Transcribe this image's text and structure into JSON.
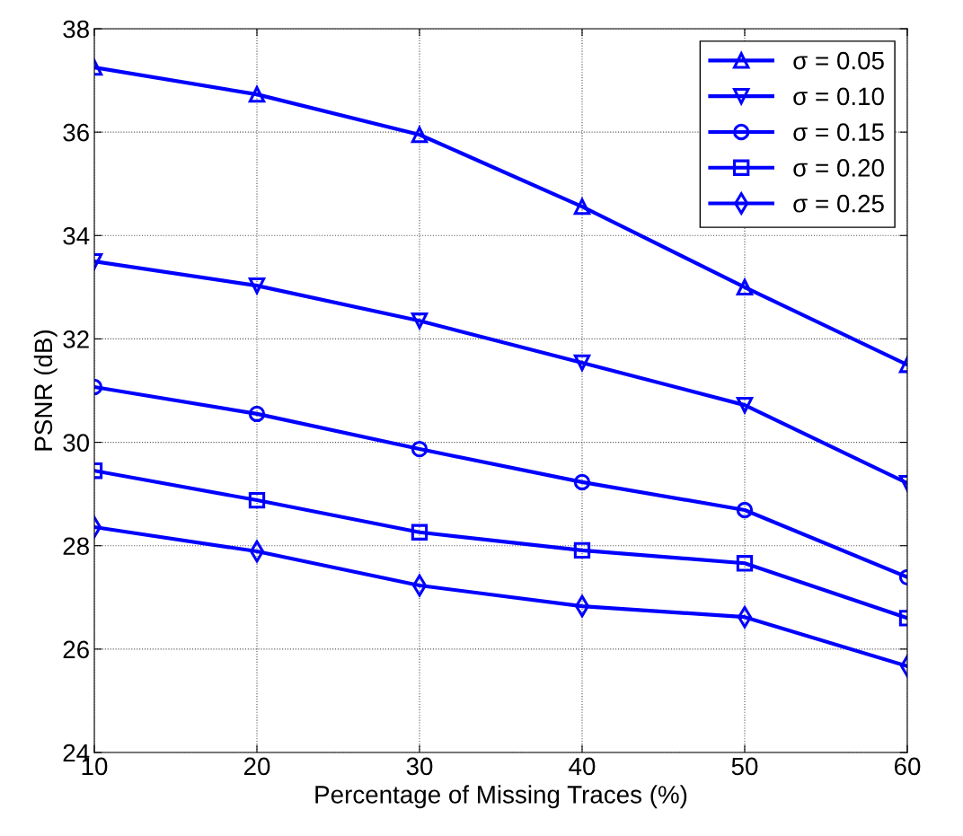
{
  "chart_data": {
    "type": "line",
    "xlabel": "Percentage of Missing Traces (%)",
    "ylabel": "PSNR (dB)",
    "x": [
      10,
      20,
      30,
      40,
      50,
      60
    ],
    "series": [
      {
        "name": "σ = 0.05",
        "color": "#0000ff",
        "marker": "triangle",
        "values": [
          37.25,
          36.73,
          35.95,
          34.56,
          33.0,
          31.5
        ]
      },
      {
        "name": "σ = 0.10",
        "color": "#0000ff",
        "marker": "triangle_down",
        "values": [
          33.5,
          33.03,
          32.35,
          31.54,
          30.72,
          29.21
        ]
      },
      {
        "name": "σ = 0.15",
        "color": "#0000ff",
        "marker": "circle",
        "values": [
          31.07,
          30.55,
          29.87,
          29.23,
          28.69,
          27.39
        ]
      },
      {
        "name": "σ = 0.20",
        "color": "#0000ff",
        "marker": "square",
        "values": [
          29.45,
          28.88,
          28.26,
          27.91,
          27.66,
          26.6
        ]
      },
      {
        "name": "σ = 0.25",
        "color": "#0000ff",
        "marker": "diamond",
        "values": [
          28.36,
          27.89,
          27.23,
          26.83,
          26.62,
          25.67
        ]
      }
    ],
    "xlim": [
      10,
      60
    ],
    "xticks": [
      10,
      20,
      30,
      40,
      50,
      60
    ],
    "ylim": [
      24,
      38
    ],
    "yticks": [
      24,
      26,
      28,
      30,
      32,
      34,
      36,
      38
    ],
    "grid": true,
    "legend": "top right",
    "line_style": "solid"
  }
}
